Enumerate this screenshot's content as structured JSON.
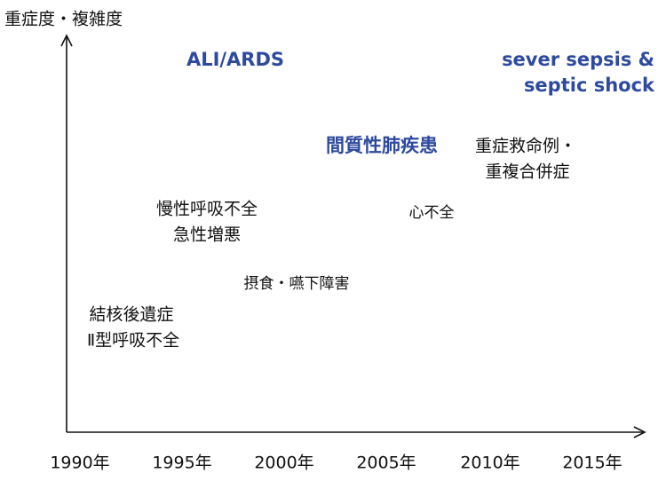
{
  "axis": {
    "y_label": "重症度・複雑度",
    "x_labels": [
      "1990年",
      "1995年",
      "2000年",
      "2005年",
      "2010年",
      "2015年"
    ]
  },
  "annotations": [
    {
      "lines": [
        "ALI/ARDS"
      ]
    },
    {
      "lines": [
        "sever sepsis &",
        "septic shock"
      ]
    },
    {
      "lines": [
        "間質性肺疾患"
      ]
    },
    {
      "lines": [
        "重症救命例・",
        "重複合併症"
      ]
    },
    {
      "lines": [
        "慢性呼吸不全",
        "急性増悪"
      ]
    },
    {
      "lines": [
        "心不全"
      ]
    },
    {
      "lines": [
        "摂食・嚥下障害"
      ]
    },
    {
      "lines": [
        "結核後遺症",
        "Ⅱ型呼吸不全"
      ]
    }
  ]
}
